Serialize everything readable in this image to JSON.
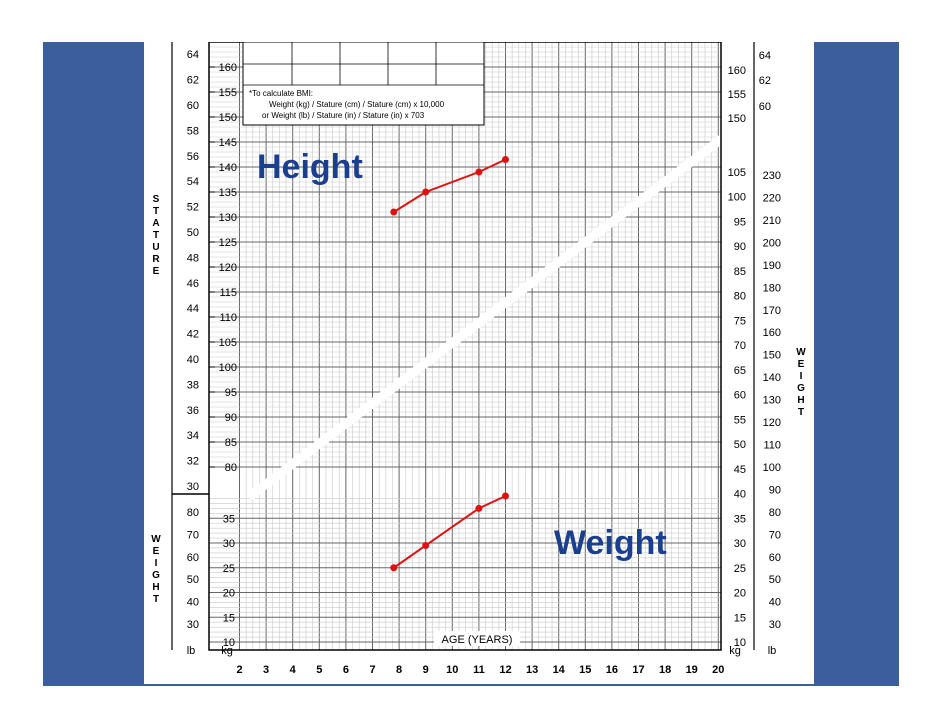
{
  "colors": {
    "frame": "#3a5f9c",
    "series": "#e01010",
    "label": "#1a3f8f",
    "grid": "#c8c8c8",
    "grid_major": "#666666"
  },
  "chart_data": {
    "type": "line",
    "labels": {
      "height": "Height",
      "weight": "Weight"
    },
    "xlabel": "AGE (YEARS)",
    "x_ticks": [
      "2",
      "3",
      "4",
      "5",
      "6",
      "7",
      "8",
      "9",
      "10",
      "11",
      "12",
      "13",
      "14",
      "15",
      "16",
      "17",
      "18",
      "19",
      "20"
    ],
    "xlim": [
      2,
      20
    ],
    "stature_label": "S T A T U R E",
    "weight_label": "W E I G H T",
    "left_weight_label": "W E I G H T",
    "unit_labels": {
      "lb": "lb",
      "kg": "kg"
    },
    "bmi_note": {
      "line1": "*To calculate BMI:",
      "line2": "Weight (kg) / Stature (cm) / Stature (cm) x 10,000",
      "line3": "or  Weight (lb) / Stature (in) / Stature (in) x 703"
    },
    "stature_cm_ticks": [
      "80",
      "85",
      "90",
      "95",
      "100",
      "105",
      "110",
      "115",
      "120",
      "125",
      "130",
      "135",
      "140",
      "145",
      "150",
      "155",
      "160"
    ],
    "stature_in_ticks": [
      "30",
      "32",
      "34",
      "36",
      "38",
      "40",
      "42",
      "44",
      "46",
      "48",
      "50",
      "52",
      "54",
      "56",
      "58",
      "60",
      "62",
      "64"
    ],
    "weight_kg_left_ticks": [
      "10",
      "15",
      "20",
      "25",
      "30",
      "35"
    ],
    "weight_lb_left_ticks": [
      "30",
      "40",
      "50",
      "60",
      "70",
      "80"
    ],
    "right_cm_ticks": [
      "150",
      "155",
      "160"
    ],
    "right_in_ticks": [
      "60",
      "62",
      "64"
    ],
    "right_weight_kg_ticks": [
      "10",
      "15",
      "20",
      "25",
      "30",
      "35",
      "40",
      "45",
      "50",
      "55",
      "60",
      "65",
      "70",
      "75",
      "80",
      "85",
      "90",
      "95",
      "100",
      "105"
    ],
    "right_weight_lb_ticks": [
      "30",
      "40",
      "50",
      "60",
      "70",
      "80",
      "90",
      "100",
      "110",
      "120",
      "130",
      "140",
      "150",
      "160",
      "170",
      "180",
      "190",
      "200",
      "210",
      "220",
      "230"
    ],
    "series": [
      {
        "name": "Height",
        "unit": "cm",
        "points": [
          [
            7.8,
            131
          ],
          [
            9,
            135
          ],
          [
            11,
            139
          ],
          [
            12,
            141.5
          ]
        ]
      },
      {
        "name": "Weight",
        "unit": "kg",
        "points": [
          [
            7.8,
            25
          ],
          [
            9,
            29.5
          ],
          [
            11,
            37
          ],
          [
            12,
            39.5
          ]
        ]
      }
    ]
  }
}
